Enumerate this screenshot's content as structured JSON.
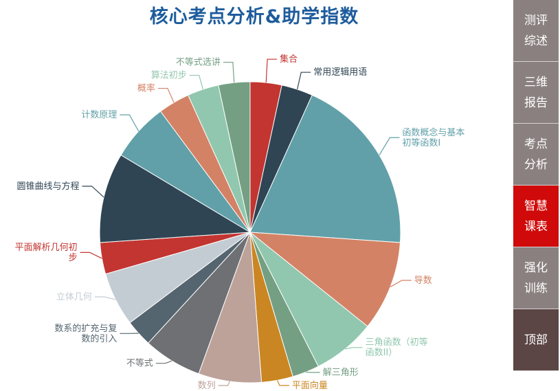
{
  "chart_data": {
    "type": "pie",
    "title": "核心考点分析&助学指数",
    "slices": [
      {
        "label": "集合",
        "value": 3.5,
        "color": "#c23531"
      },
      {
        "label": "常用逻辑用语",
        "value": 3.5,
        "color": "#2f4554"
      },
      {
        "label": "函数概念与基本初等函数Ⅰ",
        "value": 20,
        "color": "#61a0a8"
      },
      {
        "label": "导数",
        "value": 10,
        "color": "#d48265"
      },
      {
        "label": "三角函数（初等函数II）",
        "value": 7,
        "color": "#91c7ae"
      },
      {
        "label": "解三角形",
        "value": 3,
        "color": "#749f83"
      },
      {
        "label": "平面向量",
        "value": 3.5,
        "color": "#ca8622"
      },
      {
        "label": "数列",
        "value": 7,
        "color": "#bda29a"
      },
      {
        "label": "不等式",
        "value": 6.5,
        "color": "#6e7074"
      },
      {
        "label": "数系的扩充与复数的引入",
        "value": 3,
        "color": "#546570"
      },
      {
        "label": "立体几何",
        "value": 6,
        "color": "#c4ccd3"
      },
      {
        "label": "平面解析几何初步",
        "value": 3.5,
        "color": "#c23531"
      },
      {
        "label": "圆锥曲线与方程",
        "value": 10,
        "color": "#2f4554"
      },
      {
        "label": "计数原理",
        "value": 6.5,
        "color": "#61a0a8"
      },
      {
        "label": "概率",
        "value": 3.5,
        "color": "#d48265"
      },
      {
        "label": "算法初步",
        "value": 3.5,
        "color": "#91c7ae"
      },
      {
        "label": "不等式选讲",
        "value": 3.5,
        "color": "#749f83"
      }
    ]
  },
  "nav": {
    "items": [
      {
        "label": "测评综述"
      },
      {
        "label": "三维报告"
      },
      {
        "label": "考点分析"
      },
      {
        "label": "智慧课表"
      },
      {
        "label": "强化训练"
      },
      {
        "label": "顶部"
      }
    ]
  }
}
